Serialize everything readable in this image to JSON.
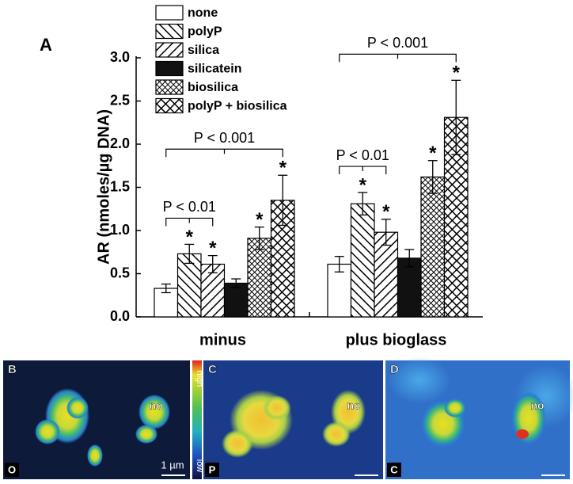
{
  "panel_label": "A",
  "chart_data": {
    "type": "bar",
    "y_label": "AR (nmoles/µg DNA)",
    "categories": [
      "minus",
      "plus bioglass"
    ],
    "ylim": [
      0,
      3.0
    ],
    "yticks": [
      {
        "value": 0,
        "label": "0.0"
      },
      {
        "value": 0.5,
        "label": "0.5"
      },
      {
        "value": 1,
        "label": "1.0"
      },
      {
        "value": 1.5,
        "label": "1.5"
      },
      {
        "value": 2,
        "label": "2.0"
      },
      {
        "value": 2.5,
        "label": "2.5"
      },
      {
        "value": 3,
        "label": "3.0"
      }
    ],
    "series": [
      {
        "name": "none",
        "hatch": "none",
        "values": [
          0.33,
          0.61
        ],
        "errors": [
          0.05,
          0.09
        ]
      },
      {
        "name": "polyP",
        "hatch": "back-diagonal",
        "values": [
          0.73,
          1.31
        ],
        "errors": [
          0.11,
          0.13
        ],
        "star": "*"
      },
      {
        "name": "silica",
        "hatch": "diagonal",
        "values": [
          0.61,
          0.98
        ],
        "errors": [
          0.1,
          0.15
        ],
        "star": "*"
      },
      {
        "name": "silicatein",
        "hatch": "solid",
        "values": [
          0.39,
          0.68
        ],
        "errors": [
          0.05,
          0.1
        ]
      },
      {
        "name": "biosilica",
        "hatch": "dense-cross",
        "values": [
          0.91,
          1.62
        ],
        "errors": [
          0.13,
          0.19
        ],
        "star": "*"
      },
      {
        "name": "polyP + biosilica",
        "hatch": "cross",
        "values": [
          1.35,
          2.31
        ],
        "errors": [
          0.29,
          0.43
        ],
        "star": "*"
      }
    ],
    "annotations": [
      {
        "text": "P < 0.01",
        "group": 0,
        "from": 0,
        "to": 2
      },
      {
        "text": "P < 0.001",
        "group": 0,
        "from": 0,
        "to": 5
      },
      {
        "text": "P < 0.01",
        "group": 1,
        "from": 0,
        "to": 2
      },
      {
        "text": "P < 0.001",
        "group": 1,
        "from": 0,
        "to": 5
      }
    ]
  },
  "images": {
    "panels": [
      {
        "label": "B",
        "corner": "O",
        "note": "no"
      },
      {
        "label": "C",
        "corner": "P",
        "note": "no"
      },
      {
        "label": "D",
        "corner": "C",
        "note": "no"
      }
    ],
    "scale_bar": "1 µm",
    "colorbar": {
      "high": "high",
      "low": "low"
    }
  }
}
